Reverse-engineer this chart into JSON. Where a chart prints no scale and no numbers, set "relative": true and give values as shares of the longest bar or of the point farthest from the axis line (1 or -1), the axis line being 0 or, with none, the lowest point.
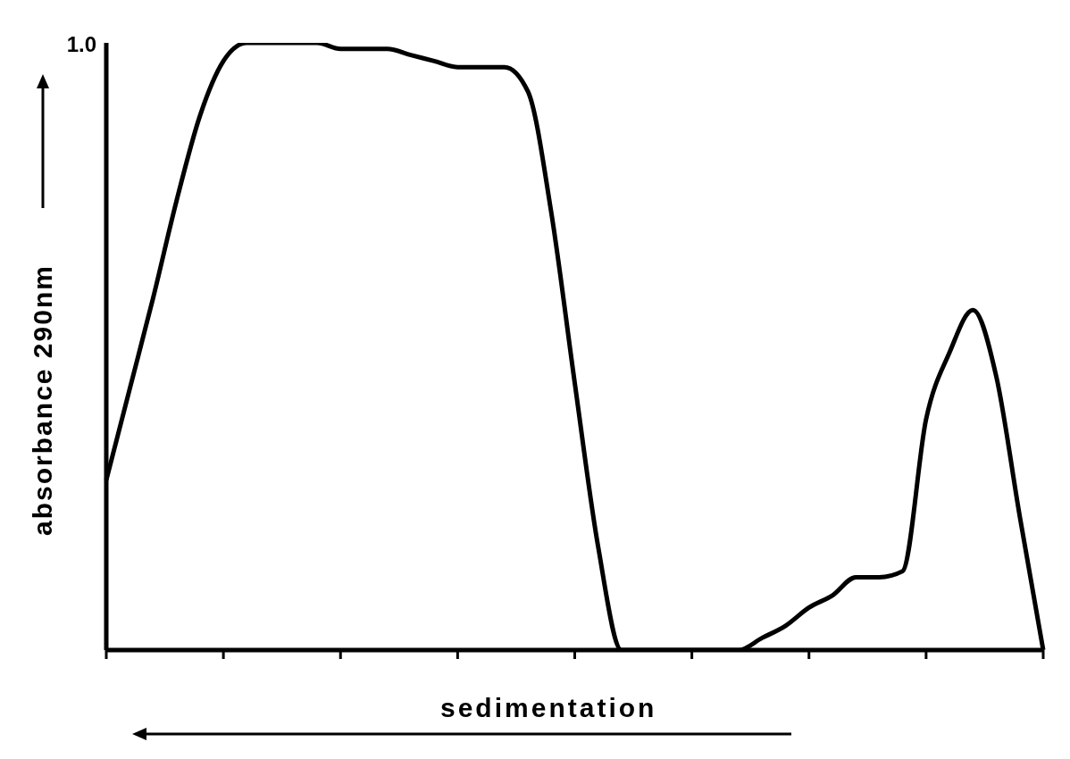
{
  "chart_data": {
    "type": "line",
    "relative": true,
    "xlabel": "sedimentation",
    "ylabel": "absorbance 290nm",
    "annotations": [
      "1.0"
    ],
    "color": "#000000",
    "marker": "none",
    "categories": [
      null,
      null,
      null,
      null,
      null,
      null,
      null,
      null,
      null,
      null,
      null,
      null,
      null,
      null,
      null,
      null,
      null,
      null,
      null,
      null,
      null,
      null,
      null,
      null,
      null,
      null,
      null,
      null,
      null,
      null,
      null,
      null,
      null,
      null,
      null,
      null,
      null,
      null,
      null,
      null,
      null
    ],
    "values": [
      0.28,
      0.43,
      0.58,
      0.74,
      0.88,
      0.97,
      1.0,
      1.0,
      1.0,
      1.0,
      0.99,
      0.99,
      0.99,
      0.98,
      0.97,
      0.96,
      0.96,
      0.96,
      0.92,
      0.72,
      0.44,
      0.17,
      0,
      0,
      0,
      0,
      0,
      0,
      0.02,
      0.04,
      0.07,
      0.09,
      0.12,
      0.12,
      0.13,
      0.38,
      0.49,
      0.56,
      0.45,
      0.22,
      0
    ]
  }
}
